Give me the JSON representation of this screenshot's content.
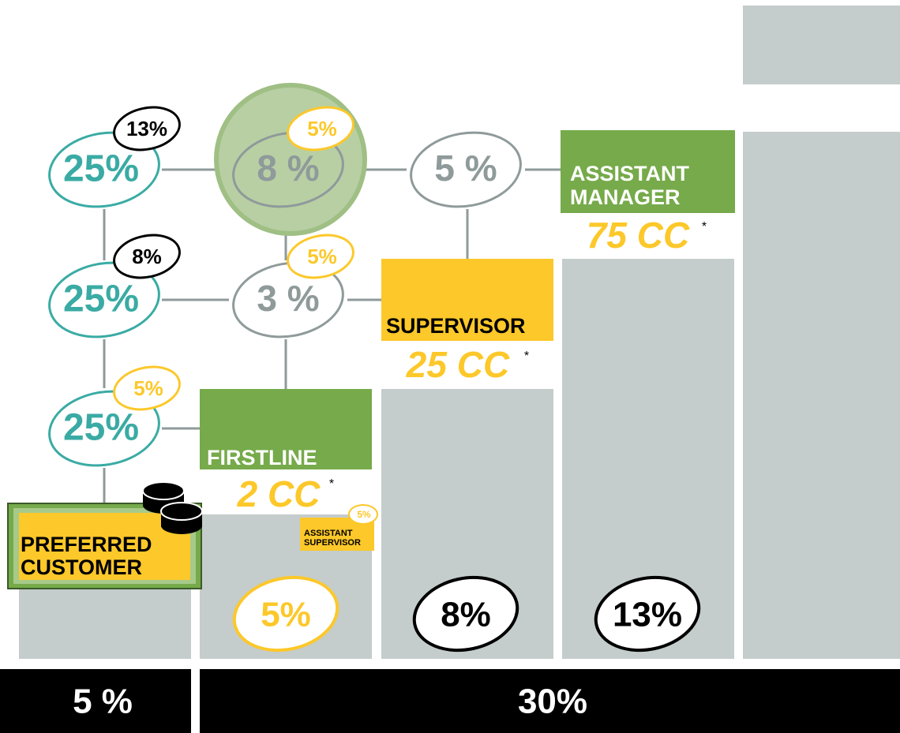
{
  "nodes": [
    {
      "label": "25%",
      "badge": "13%"
    },
    {
      "label": "8 %",
      "badge": "5%"
    },
    {
      "label": "5 %"
    },
    {
      "label": "25%",
      "badge": "8%"
    },
    {
      "label": "3 %",
      "badge": "5%"
    },
    {
      "label": "25%",
      "badge": "5%"
    }
  ],
  "ranks": [
    {
      "name": [
        "PREFERRED",
        "CUSTOMER"
      ]
    },
    {
      "name": [
        "FIRSTLINE"
      ],
      "cc": "2 CC",
      "note": "*"
    },
    {
      "name": [
        "ASSISTANT",
        "SUPERVISOR"
      ],
      "badge": "5%"
    },
    {
      "name": [
        "SUPERVISOR"
      ],
      "cc": "25 CC",
      "note": "*"
    },
    {
      "name": [
        "ASSISTANT",
        "MANAGER"
      ],
      "cc": "75 CC",
      "note": "*"
    }
  ],
  "column_rates": [
    "5%",
    "8%",
    "13%"
  ],
  "footer": [
    "5 %",
    "30%"
  ]
}
